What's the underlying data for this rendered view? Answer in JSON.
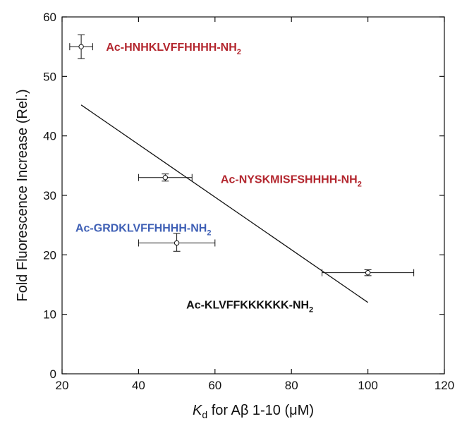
{
  "chart_data": {
    "type": "scatter",
    "title": "",
    "xlabel": {
      "italic": "K",
      "sub": "d",
      "rest": " for Aβ 1-10 (μM)"
    },
    "ylabel": "Fold Fluorescence Increase (Rel.)",
    "xlim": [
      20,
      120
    ],
    "ylim": [
      0,
      60
    ],
    "xticks": [
      20,
      40,
      60,
      80,
      100,
      120
    ],
    "yticks": [
      0,
      10,
      20,
      30,
      40,
      50,
      60
    ],
    "grid": false,
    "points": [
      {
        "x": 25,
        "y": 55,
        "xerr": [
          22,
          28
        ],
        "yerr": [
          53,
          57
        ]
      },
      {
        "x": 47,
        "y": 33,
        "xerr": [
          40,
          54
        ],
        "yerr": [
          32.4,
          33.6
        ]
      },
      {
        "x": 50,
        "y": 22,
        "xerr": [
          40,
          60
        ],
        "yerr": [
          20.6,
          23.6
        ]
      },
      {
        "x": 100,
        "y": 17,
        "xerr": [
          88,
          112
        ],
        "yerr": [
          16.5,
          17.5
        ]
      }
    ],
    "fit_line": {
      "x": [
        25,
        100
      ],
      "y": [
        45.2,
        12
      ]
    },
    "annotations": [
      {
        "text": "Ac-HNHKLVFFHHHH-NH",
        "sub": "2",
        "color": "#b3262e",
        "x": 31.5,
        "y": 55
      },
      {
        "text": "Ac-NYSKMISFSHHHH-NH",
        "sub": "2",
        "color": "#b3262e",
        "x": 61.5,
        "y": 32.8
      },
      {
        "text": "Ac-GRDKLVFFHHHH-NH",
        "sub": "2",
        "color": "#3e5fb5",
        "x": 23.5,
        "y": 24.6
      },
      {
        "text": "Ac-KLVFFKKKKKK-NH",
        "sub": "2",
        "color": "#111111",
        "x": 52.5,
        "y": 11.7
      }
    ]
  }
}
